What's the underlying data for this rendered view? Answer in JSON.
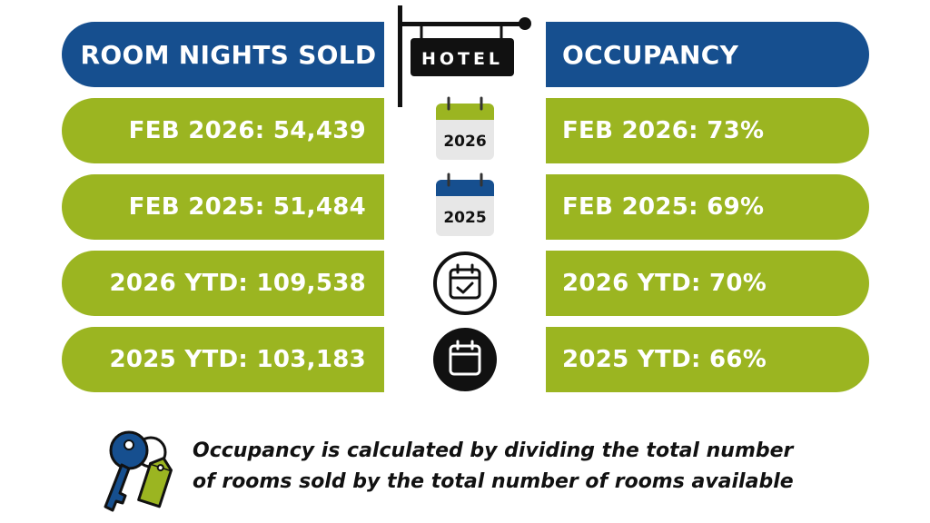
{
  "header": {
    "left_title": "ROOM NIGHTS SOLD",
    "sign_text": "HOTEL",
    "right_title": "OCCUPANCY"
  },
  "rows": [
    {
      "left": "FEB 2026: 54,439",
      "right": "FEB 2026: 73%",
      "icon": "calendar-2026-icon",
      "icon_text": "2026",
      "icon_color": "#9bb521"
    },
    {
      "left": "FEB 2025: 51,484",
      "right": "FEB 2025: 69%",
      "icon": "calendar-2025-icon",
      "icon_text": "2025",
      "icon_color": "#164f8f"
    },
    {
      "left": "2026 YTD: 109,538",
      "right": "2026 YTD: 70%",
      "icon": "calendar-check-icon"
    },
    {
      "left": "2025 YTD: 103,183",
      "right": "2025 YTD: 66%",
      "icon": "calendar-icon"
    }
  ],
  "footnote": {
    "line1": "Occupancy is calculated by dividing the total number",
    "line2": "of rooms sold by the total number of rooms available",
    "icon": "keys-icon"
  },
  "colors": {
    "blue": "#164f8f",
    "green": "#9bb521",
    "black": "#111111"
  }
}
